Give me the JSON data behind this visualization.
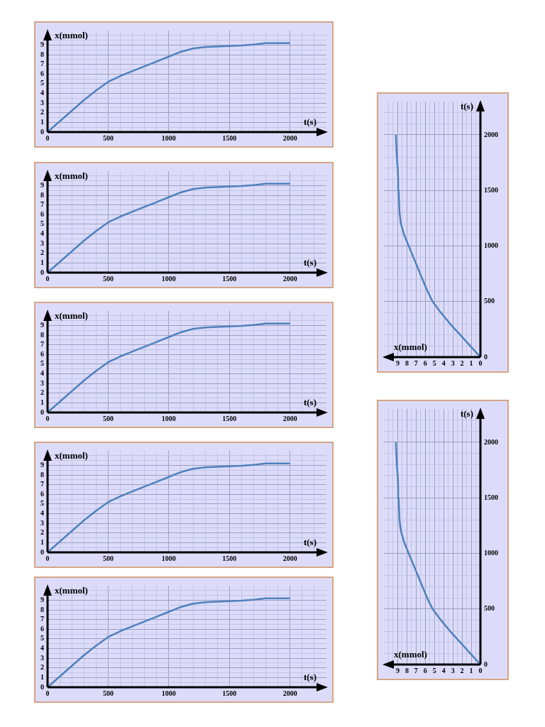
{
  "chart_data": [
    {
      "type": "line",
      "xlabel": "t(s)",
      "ylabel": "x(mmol)",
      "x": [
        0,
        100,
        200,
        300,
        400,
        500,
        600,
        700,
        800,
        900,
        1000,
        1100,
        1200,
        1300,
        1400,
        1500,
        1600,
        1700,
        1800,
        1900,
        2000
      ],
      "series": [
        {
          "color": "#4f81bd",
          "values": [
            0,
            1.1,
            2.2,
            3.3,
            4.3,
            5.2,
            5.8,
            6.3,
            6.8,
            7.3,
            7.8,
            8.3,
            8.65,
            8.8,
            8.85,
            8.9,
            8.95,
            9.05,
            9.2,
            9.2,
            9.2
          ]
        }
      ],
      "xlim": [
        0,
        2300
      ],
      "ylim": [
        0,
        10.5
      ],
      "xticks": [
        0,
        {
          "value": 100,
          "label": null
        },
        {
          "value": 200,
          "label": null
        },
        {
          "value": 300,
          "label": null
        },
        {
          "value": 400,
          "label": null
        },
        500,
        {
          "value": 600,
          "label": null
        },
        {
          "value": 700,
          "label": null
        },
        {
          "value": 800,
          "label": null
        },
        {
          "value": 900,
          "label": null
        },
        1000,
        {
          "value": 1100,
          "label": null
        },
        {
          "value": 1200,
          "label": null
        },
        {
          "value": 1300,
          "label": null
        },
        {
          "value": 1400,
          "label": null
        },
        1500,
        {
          "value": 1600,
          "label": null
        },
        {
          "value": 1700,
          "label": null
        },
        {
          "value": 1800,
          "label": null
        },
        {
          "value": 1900,
          "label": null
        },
        2000,
        {
          "value": 2100,
          "label": null
        },
        {
          "value": 2200,
          "label": null
        }
      ],
      "yticks": [
        0,
        {
          "value": 0.5,
          "label": null
        },
        1,
        {
          "value": 1.5,
          "label": null
        },
        2,
        {
          "value": 2.5,
          "label": null
        },
        3,
        {
          "value": 3.5,
          "label": null
        },
        4,
        {
          "value": 4.5,
          "label": null
        },
        5,
        {
          "value": 5.5,
          "label": null
        },
        6,
        {
          "value": 6.5,
          "label": null
        },
        7,
        {
          "value": 7.5,
          "label": null
        },
        8,
        {
          "value": 8.5,
          "label": null
        },
        9,
        {
          "value": 9.5,
          "label": null
        },
        {
          "value": 10,
          "label": null
        }
      ],
      "grid": true
    },
    {
      "type": "line",
      "xlabel": "t(s)",
      "ylabel": "x(mmol)",
      "x": [
        0,
        100,
        200,
        300,
        400,
        500,
        600,
        700,
        800,
        900,
        1000,
        1100,
        1200,
        1300,
        1400,
        1500,
        1600,
        1700,
        1800,
        1900,
        2000
      ],
      "series": [
        {
          "color": "#4f81bd",
          "values": [
            0,
            1.1,
            2.2,
            3.3,
            4.3,
            5.2,
            5.8,
            6.3,
            6.8,
            7.3,
            7.8,
            8.3,
            8.65,
            8.8,
            8.85,
            8.9,
            8.95,
            9.05,
            9.2,
            9.2,
            9.2
          ]
        }
      ],
      "xlim": [
        0,
        2300
      ],
      "ylim": [
        0,
        10.5
      ],
      "xticks": [
        0,
        {
          "value": 100,
          "label": null
        },
        {
          "value": 200,
          "label": null
        },
        {
          "value": 300,
          "label": null
        },
        {
          "value": 400,
          "label": null
        },
        500,
        {
          "value": 600,
          "label": null
        },
        {
          "value": 700,
          "label": null
        },
        {
          "value": 800,
          "label": null
        },
        {
          "value": 900,
          "label": null
        },
        1000,
        {
          "value": 1100,
          "label": null
        },
        {
          "value": 1200,
          "label": null
        },
        {
          "value": 1300,
          "label": null
        },
        {
          "value": 1400,
          "label": null
        },
        1500,
        {
          "value": 1600,
          "label": null
        },
        {
          "value": 1700,
          "label": null
        },
        {
          "value": 1800,
          "label": null
        },
        {
          "value": 1900,
          "label": null
        },
        2000,
        {
          "value": 2100,
          "label": null
        },
        {
          "value": 2200,
          "label": null
        }
      ],
      "yticks": [
        0,
        {
          "value": 0.5,
          "label": null
        },
        1,
        {
          "value": 1.5,
          "label": null
        },
        2,
        {
          "value": 2.5,
          "label": null
        },
        3,
        {
          "value": 3.5,
          "label": null
        },
        4,
        {
          "value": 4.5,
          "label": null
        },
        5,
        {
          "value": 5.5,
          "label": null
        },
        6,
        {
          "value": 6.5,
          "label": null
        },
        7,
        {
          "value": 7.5,
          "label": null
        },
        8,
        {
          "value": 8.5,
          "label": null
        },
        9,
        {
          "value": 9.5,
          "label": null
        },
        {
          "value": 10,
          "label": null
        }
      ],
      "grid": true
    },
    {
      "type": "line",
      "xlabel": "t(s)",
      "ylabel": "x(mmol)",
      "x": [
        0,
        100,
        200,
        300,
        400,
        500,
        600,
        700,
        800,
        900,
        1000,
        1100,
        1200,
        1300,
        1400,
        1500,
        1600,
        1700,
        1800,
        1900,
        2000
      ],
      "series": [
        {
          "color": "#4f81bd",
          "values": [
            0,
            1.1,
            2.2,
            3.3,
            4.3,
            5.2,
            5.8,
            6.3,
            6.8,
            7.3,
            7.8,
            8.3,
            8.65,
            8.8,
            8.85,
            8.9,
            8.95,
            9.05,
            9.2,
            9.2,
            9.2
          ]
        }
      ],
      "xlim": [
        0,
        2300
      ],
      "ylim": [
        0,
        10.5
      ],
      "xticks": [
        0,
        {
          "value": 100,
          "label": null
        },
        {
          "value": 200,
          "label": null
        },
        {
          "value": 300,
          "label": null
        },
        {
          "value": 400,
          "label": null
        },
        500,
        {
          "value": 600,
          "label": null
        },
        {
          "value": 700,
          "label": null
        },
        {
          "value": 800,
          "label": null
        },
        {
          "value": 900,
          "label": null
        },
        1000,
        {
          "value": 1100,
          "label": null
        },
        {
          "value": 1200,
          "label": null
        },
        {
          "value": 1300,
          "label": null
        },
        {
          "value": 1400,
          "label": null
        },
        1500,
        {
          "value": 1600,
          "label": null
        },
        {
          "value": 1700,
          "label": null
        },
        {
          "value": 1800,
          "label": null
        },
        {
          "value": 1900,
          "label": null
        },
        2000,
        {
          "value": 2100,
          "label": null
        },
        {
          "value": 2200,
          "label": null
        }
      ],
      "yticks": [
        0,
        {
          "value": 0.5,
          "label": null
        },
        1,
        {
          "value": 1.5,
          "label": null
        },
        2,
        {
          "value": 2.5,
          "label": null
        },
        3,
        {
          "value": 3.5,
          "label": null
        },
        4,
        {
          "value": 4.5,
          "label": null
        },
        5,
        {
          "value": 5.5,
          "label": null
        },
        6,
        {
          "value": 6.5,
          "label": null
        },
        7,
        {
          "value": 7.5,
          "label": null
        },
        8,
        {
          "value": 8.5,
          "label": null
        },
        9,
        {
          "value": 9.5,
          "label": null
        },
        {
          "value": 10,
          "label": null
        }
      ],
      "grid": true
    },
    {
      "type": "line",
      "xlabel": "t(s)",
      "ylabel": "x(mmol)",
      "x": [
        0,
        100,
        200,
        300,
        400,
        500,
        600,
        700,
        800,
        900,
        1000,
        1100,
        1200,
        1300,
        1400,
        1500,
        1600,
        1700,
        1800,
        1900,
        2000
      ],
      "series": [
        {
          "color": "#4f81bd",
          "values": [
            0,
            1.1,
            2.2,
            3.3,
            4.3,
            5.2,
            5.8,
            6.3,
            6.8,
            7.3,
            7.8,
            8.3,
            8.65,
            8.8,
            8.85,
            8.9,
            8.95,
            9.05,
            9.2,
            9.2,
            9.2
          ]
        }
      ],
      "xlim": [
        0,
        2300
      ],
      "ylim": [
        0,
        10.5
      ],
      "xticks": [
        0,
        {
          "value": 100,
          "label": null
        },
        {
          "value": 200,
          "label": null
        },
        {
          "value": 300,
          "label": null
        },
        {
          "value": 400,
          "label": null
        },
        500,
        {
          "value": 600,
          "label": null
        },
        {
          "value": 700,
          "label": null
        },
        {
          "value": 800,
          "label": null
        },
        {
          "value": 900,
          "label": null
        },
        1000,
        {
          "value": 1100,
          "label": null
        },
        {
          "value": 1200,
          "label": null
        },
        {
          "value": 1300,
          "label": null
        },
        {
          "value": 1400,
          "label": null
        },
        1500,
        {
          "value": 1600,
          "label": null
        },
        {
          "value": 1700,
          "label": null
        },
        {
          "value": 1800,
          "label": null
        },
        {
          "value": 1900,
          "label": null
        },
        2000,
        {
          "value": 2100,
          "label": null
        },
        {
          "value": 2200,
          "label": null
        }
      ],
      "yticks": [
        0,
        {
          "value": 0.5,
          "label": null
        },
        1,
        {
          "value": 1.5,
          "label": null
        },
        2,
        {
          "value": 2.5,
          "label": null
        },
        3,
        {
          "value": 3.5,
          "label": null
        },
        4,
        {
          "value": 4.5,
          "label": null
        },
        5,
        {
          "value": 5.5,
          "label": null
        },
        6,
        {
          "value": 6.5,
          "label": null
        },
        7,
        {
          "value": 7.5,
          "label": null
        },
        8,
        {
          "value": 8.5,
          "label": null
        },
        9,
        {
          "value": 9.5,
          "label": null
        },
        {
          "value": 10,
          "label": null
        }
      ],
      "grid": true
    },
    {
      "type": "line",
      "xlabel": "t(s)",
      "ylabel": "x(mmol)",
      "x": [
        0,
        100,
        200,
        300,
        400,
        500,
        600,
        700,
        800,
        900,
        1000,
        1100,
        1200,
        1300,
        1400,
        1500,
        1600,
        1700,
        1800,
        1900,
        2000
      ],
      "series": [
        {
          "color": "#4f81bd",
          "values": [
            0,
            1.1,
            2.2,
            3.3,
            4.3,
            5.2,
            5.8,
            6.3,
            6.8,
            7.3,
            7.8,
            8.3,
            8.65,
            8.8,
            8.85,
            8.9,
            8.95,
            9.05,
            9.2,
            9.2,
            9.2
          ]
        }
      ],
      "xlim": [
        0,
        2300
      ],
      "ylim": [
        0,
        10.5
      ],
      "xticks": [
        0,
        {
          "value": 100,
          "label": null
        },
        {
          "value": 200,
          "label": null
        },
        {
          "value": 300,
          "label": null
        },
        {
          "value": 400,
          "label": null
        },
        500,
        {
          "value": 600,
          "label": null
        },
        {
          "value": 700,
          "label": null
        },
        {
          "value": 800,
          "label": null
        },
        {
          "value": 900,
          "label": null
        },
        1000,
        {
          "value": 1100,
          "label": null
        },
        {
          "value": 1200,
          "label": null
        },
        {
          "value": 1300,
          "label": null
        },
        {
          "value": 1400,
          "label": null
        },
        1500,
        {
          "value": 1600,
          "label": null
        },
        {
          "value": 1700,
          "label": null
        },
        {
          "value": 1800,
          "label": null
        },
        {
          "value": 1900,
          "label": null
        },
        2000,
        {
          "value": 2100,
          "label": null
        },
        {
          "value": 2200,
          "label": null
        }
      ],
      "yticks": [
        0,
        {
          "value": 0.5,
          "label": null
        },
        1,
        {
          "value": 1.5,
          "label": null
        },
        2,
        {
          "value": 2.5,
          "label": null
        },
        3,
        {
          "value": 3.5,
          "label": null
        },
        4,
        {
          "value": 4.5,
          "label": null
        },
        5,
        {
          "value": 5.5,
          "label": null
        },
        6,
        {
          "value": 6.5,
          "label": null
        },
        7,
        {
          "value": 7.5,
          "label": null
        },
        8,
        {
          "value": 8.5,
          "label": null
        },
        9,
        {
          "value": 9.5,
          "label": null
        },
        {
          "value": 10,
          "label": null
        }
      ],
      "grid": true
    },
    {
      "type": "line",
      "xlabel": "x(mmol)",
      "ylabel": "t(s)",
      "x": [
        0,
        1.1,
        2.2,
        3.3,
        4.3,
        5.2,
        5.8,
        6.3,
        6.8,
        7.3,
        7.8,
        8.3,
        8.65,
        8.8,
        8.85,
        8.9,
        8.95,
        9.0,
        9.1,
        9.15,
        9.2
      ],
      "series": [
        {
          "color": "#4f81bd",
          "values": [
            0,
            100,
            200,
            300,
            400,
            500,
            600,
            700,
            800,
            900,
            1000,
            1100,
            1200,
            1300,
            1400,
            1500,
            1600,
            1700,
            1800,
            1900,
            2000
          ]
        }
      ],
      "xlim": [
        10.5,
        0
      ],
      "ylim": [
        0,
        2300
      ],
      "xticks": [
        0,
        {
          "value": 0.5,
          "label": null
        },
        1,
        {
          "value": 1.5,
          "label": null
        },
        2,
        {
          "value": 2.5,
          "label": null
        },
        3,
        {
          "value": 3.5,
          "label": null
        },
        4,
        {
          "value": 4.5,
          "label": null
        },
        5,
        {
          "value": 5.5,
          "label": null
        },
        6,
        {
          "value": 6.5,
          "label": null
        },
        7,
        {
          "value": 7.5,
          "label": null
        },
        8,
        {
          "value": 8.5,
          "label": null
        },
        9,
        {
          "value": 9.5,
          "label": null
        },
        {
          "value": 10,
          "label": null
        }
      ],
      "yticks": [
        0,
        {
          "value": 100,
          "label": null
        },
        {
          "value": 200,
          "label": null
        },
        {
          "value": 300,
          "label": null
        },
        {
          "value": 400,
          "label": null
        },
        500,
        {
          "value": 600,
          "label": null
        },
        {
          "value": 700,
          "label": null
        },
        {
          "value": 800,
          "label": null
        },
        {
          "value": 900,
          "label": null
        },
        1000,
        {
          "value": 1100,
          "label": null
        },
        {
          "value": 1200,
          "label": null
        },
        {
          "value": 1300,
          "label": null
        },
        {
          "value": 1400,
          "label": null
        },
        1500,
        {
          "value": 1600,
          "label": null
        },
        {
          "value": 1700,
          "label": null
        },
        {
          "value": 1800,
          "label": null
        },
        {
          "value": 1900,
          "label": null
        },
        2000,
        {
          "value": 2100,
          "label": null
        },
        {
          "value": 2200,
          "label": null
        }
      ],
      "grid": true
    },
    {
      "type": "line",
      "xlabel": "x(mmol)",
      "ylabel": "t(s)",
      "x": [
        0,
        1.1,
        2.2,
        3.3,
        4.3,
        5.2,
        5.8,
        6.3,
        6.8,
        7.3,
        7.8,
        8.3,
        8.65,
        8.8,
        8.85,
        8.9,
        8.95,
        9.0,
        9.1,
        9.15,
        9.2
      ],
      "series": [
        {
          "color": "#4f81bd",
          "values": [
            0,
            100,
            200,
            300,
            400,
            500,
            600,
            700,
            800,
            900,
            1000,
            1100,
            1200,
            1300,
            1400,
            1500,
            1600,
            1700,
            1800,
            1900,
            2000
          ]
        }
      ],
      "xlim": [
        10.5,
        0
      ],
      "ylim": [
        0,
        2300
      ],
      "xticks": [
        0,
        {
          "value": 0.5,
          "label": null
        },
        1,
        {
          "value": 1.5,
          "label": null
        },
        2,
        {
          "value": 2.5,
          "label": null
        },
        3,
        {
          "value": 3.5,
          "label": null
        },
        4,
        {
          "value": 4.5,
          "label": null
        },
        5,
        {
          "value": 5.5,
          "label": null
        },
        6,
        {
          "value": 6.5,
          "label": null
        },
        7,
        {
          "value": 7.5,
          "label": null
        },
        8,
        {
          "value": 8.5,
          "label": null
        },
        9,
        {
          "value": 9.5,
          "label": null
        },
        {
          "value": 10,
          "label": null
        }
      ],
      "yticks": [
        0,
        {
          "value": 100,
          "label": null
        },
        {
          "value": 200,
          "label": null
        },
        {
          "value": 300,
          "label": null
        },
        {
          "value": 400,
          "label": null
        },
        500,
        {
          "value": 600,
          "label": null
        },
        {
          "value": 700,
          "label": null
        },
        {
          "value": 800,
          "label": null
        },
        {
          "value": 900,
          "label": null
        },
        1000,
        {
          "value": 1100,
          "label": null
        },
        {
          "value": 1200,
          "label": null
        },
        {
          "value": 1300,
          "label": null
        },
        {
          "value": 1400,
          "label": null
        },
        1500,
        {
          "value": 1600,
          "label": null
        },
        {
          "value": 1700,
          "label": null
        },
        {
          "value": 1800,
          "label": null
        },
        {
          "value": 1900,
          "label": null
        },
        2000,
        {
          "value": 2100,
          "label": null
        },
        {
          "value": 2200,
          "label": null
        }
      ],
      "grid": true
    }
  ]
}
